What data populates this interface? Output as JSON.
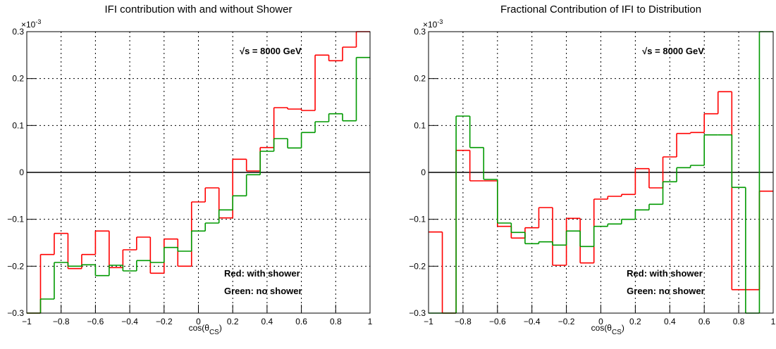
{
  "chart_data": [
    {
      "type": "histogram",
      "title": "IFI contribution with and without Shower",
      "xlabel": [
        "cos(θ",
        "CS",
        ")"
      ],
      "y_multiplier": {
        "base": "×10",
        "exponent": "-3"
      },
      "annotation": "√s = 8000 GeV",
      "bins": [
        -1,
        -0.92,
        -0.84,
        -0.76,
        -0.68,
        -0.6,
        -0.52,
        -0.44,
        -0.36,
        -0.28,
        -0.2,
        -0.12,
        -0.04,
        0.04,
        0.12,
        0.2,
        0.28,
        0.36,
        0.44,
        0.52,
        0.6,
        0.68,
        0.76,
        0.84,
        0.92,
        1
      ],
      "series": [
        {
          "name": "Red: with shower",
          "color": "#ff0000",
          "values": [
            -0.3,
            -0.175,
            -0.13,
            -0.205,
            -0.175,
            -0.125,
            -0.203,
            -0.165,
            -0.138,
            -0.215,
            -0.142,
            -0.2,
            -0.063,
            -0.033,
            -0.097,
            0.028,
            0.003,
            0.053,
            0.138,
            0.135,
            0.132,
            0.25,
            0.238,
            0.267,
            0.3
          ]
        },
        {
          "name": "Green: no shower",
          "color": "#009900",
          "values": [
            -0.3,
            -0.27,
            -0.192,
            -0.2,
            -0.197,
            -0.22,
            -0.198,
            -0.21,
            -0.188,
            -0.192,
            -0.16,
            -0.168,
            -0.125,
            -0.108,
            -0.08,
            -0.05,
            -0.005,
            0.045,
            0.072,
            0.052,
            0.085,
            0.108,
            0.125,
            0.11,
            0.245
          ]
        }
      ],
      "xlim": [
        -1,
        1
      ],
      "xticks": [
        {
          "value": -1,
          "label": "−1"
        },
        {
          "value": -0.8,
          "label": "−0.8"
        },
        {
          "value": -0.6,
          "label": "−0.6"
        },
        {
          "value": -0.4,
          "label": "−0.4"
        },
        {
          "value": -0.2,
          "label": "−0.2"
        },
        0,
        0.2,
        0.4,
        0.6,
        0.8,
        1
      ],
      "ylim": [
        -0.3,
        0.3
      ],
      "yticks": [
        {
          "value": -0.3,
          "label": "−0.3"
        },
        {
          "value": -0.2,
          "label": "−0.2"
        },
        {
          "value": -0.1,
          "label": "−0.1"
        },
        0,
        0.1,
        0.2,
        0.3
      ],
      "grid": true
    },
    {
      "type": "histogram",
      "title": "Fractional Contribution of IFI to Distribution",
      "xlabel": [
        "cos(θ",
        "CS",
        ")"
      ],
      "y_multiplier": {
        "base": "×10",
        "exponent": "-3"
      },
      "annotation": "√s = 8000 GeV",
      "bins": [
        -1,
        -0.92,
        -0.84,
        -0.76,
        -0.68,
        -0.6,
        -0.52,
        -0.44,
        -0.36,
        -0.28,
        -0.2,
        -0.12,
        -0.04,
        0.04,
        0.12,
        0.2,
        0.28,
        0.36,
        0.44,
        0.52,
        0.6,
        0.68,
        0.76,
        0.84,
        0.92,
        1
      ],
      "series": [
        {
          "name": "Red: with shower",
          "color": "#ff0000",
          "values": [
            -0.127,
            -0.3,
            0.047,
            -0.018,
            -0.018,
            -0.115,
            -0.14,
            -0.118,
            -0.075,
            -0.198,
            -0.098,
            -0.193,
            -0.057,
            -0.051,
            -0.047,
            0.008,
            -0.033,
            0.033,
            0.083,
            0.085,
            0.125,
            0.172,
            -0.25,
            -0.25,
            -0.04
          ]
        },
        {
          "name": "Green: no shower",
          "color": "#009900",
          "values": [
            -0.3,
            -0.3,
            0.12,
            0.053,
            -0.015,
            -0.108,
            -0.128,
            -0.152,
            -0.148,
            -0.155,
            -0.125,
            -0.158,
            -0.115,
            -0.11,
            -0.1,
            -0.08,
            -0.068,
            -0.02,
            0.01,
            0.015,
            0.08,
            0.08,
            -0.032,
            -0.3,
            0.3
          ]
        }
      ],
      "xlim": [
        -1,
        1
      ],
      "xticks": [
        {
          "value": -1,
          "label": "−1"
        },
        {
          "value": -0.8,
          "label": "−0.8"
        },
        {
          "value": -0.6,
          "label": "−0.6"
        },
        {
          "value": -0.4,
          "label": "−0.4"
        },
        {
          "value": -0.2,
          "label": "−0.2"
        },
        0,
        0.2,
        0.4,
        0.6,
        0.8,
        1
      ],
      "ylim": [
        -0.3,
        0.3
      ],
      "yticks": [
        {
          "value": -0.3,
          "label": "−0.3"
        },
        {
          "value": -0.2,
          "label": "−0.2"
        },
        {
          "value": -0.1,
          "label": "−0.1"
        },
        0,
        0.1,
        0.2,
        0.3
      ],
      "grid": true
    }
  ]
}
